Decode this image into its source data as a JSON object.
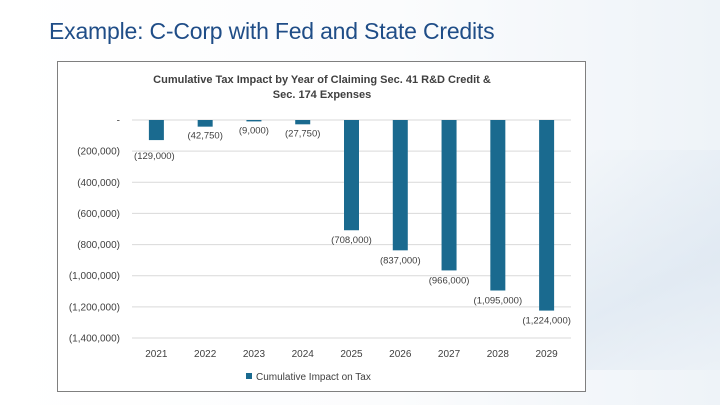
{
  "slide": {
    "title": "Example: C-Corp with Fed and State Credits"
  },
  "chart_data": {
    "type": "bar",
    "title_lines": [
      "Cumulative Tax Impact by Year of Claiming Sec. 41 R&D Credit &",
      "Sec. 174 Expenses"
    ],
    "categories": [
      "2021",
      "2022",
      "2023",
      "2024",
      "2025",
      "2026",
      "2027",
      "2028",
      "2029"
    ],
    "series": [
      {
        "name": "Cumulative Impact on Tax",
        "values": [
          -129000,
          -42750,
          -9000,
          -27750,
          -708000,
          -837000,
          -966000,
          -1095000,
          -1224000
        ],
        "data_labels": [
          "(129,000)",
          "(42,750)",
          "(9,000)",
          "(27,750)",
          "(708,000)",
          "(837,000)",
          "(966,000)",
          "(1,095,000)",
          "(1,224,000)"
        ]
      }
    ],
    "ylim": [
      -1400000,
      0
    ],
    "yticks": [
      0,
      -200000,
      -400000,
      -600000,
      -800000,
      -1000000,
      -1200000,
      -1400000
    ],
    "ytick_labels": [
      "-",
      "(200,000)",
      "(400,000)",
      "(600,000)",
      "(800,000)",
      "(1,000,000)",
      "(1,200,000)",
      "(1,400,000)"
    ],
    "xlabel": "",
    "ylabel": "",
    "grid": true,
    "legend_position": "bottom",
    "bar_color": "#1a6a8f"
  }
}
